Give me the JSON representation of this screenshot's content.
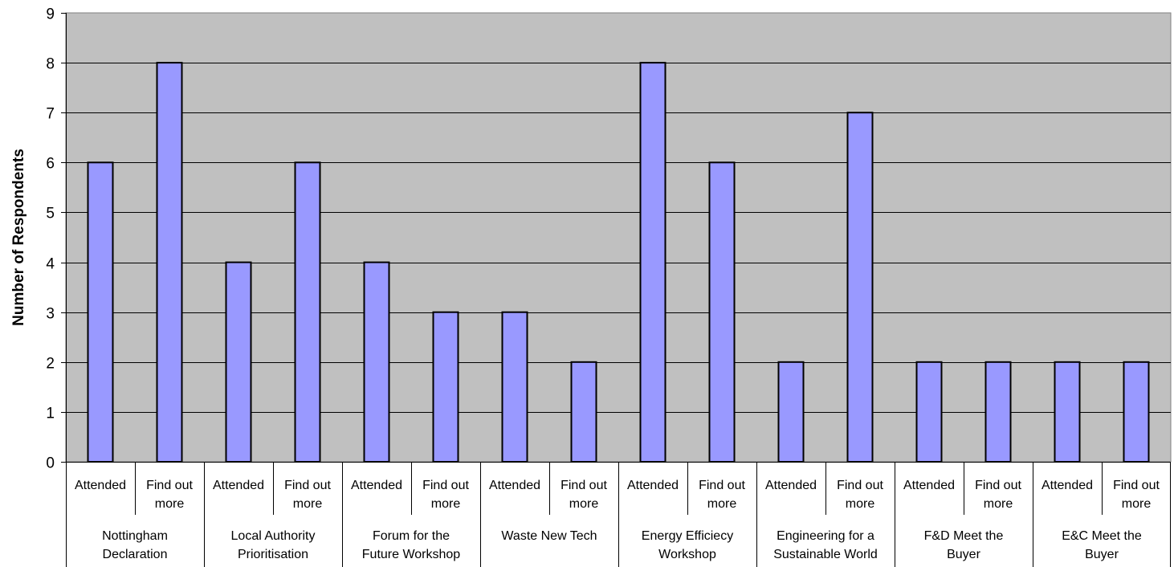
{
  "colors": {
    "plot_background": "#c0c0c0",
    "bar_fill": "#9999ff",
    "bar_stroke": "#000000",
    "gridline": "#000000"
  },
  "chart_data": {
    "type": "bar",
    "title": "",
    "xlabel": "",
    "ylabel": "Number of Respondents",
    "ylim": [
      0,
      9
    ],
    "yticks": [
      0,
      1,
      2,
      3,
      4,
      5,
      6,
      7,
      8,
      9
    ],
    "grid": true,
    "legend": "none",
    "groups": [
      {
        "label": [
          "Nottingham",
          "Declaration"
        ],
        "categories": [
          [
            "Attended"
          ],
          [
            "Find out",
            "more"
          ]
        ],
        "values": [
          6,
          8
        ]
      },
      {
        "label": [
          "Local Authority",
          "Prioritisation"
        ],
        "categories": [
          [
            "Attended"
          ],
          [
            "Find out",
            "more"
          ]
        ],
        "values": [
          4,
          6
        ]
      },
      {
        "label": [
          "Forum for the",
          "Future Workshop"
        ],
        "categories": [
          [
            "Attended"
          ],
          [
            "Find out",
            "more"
          ]
        ],
        "values": [
          4,
          3
        ]
      },
      {
        "label": [
          "Waste New Tech"
        ],
        "categories": [
          [
            "Attended"
          ],
          [
            "Find out",
            "more"
          ]
        ],
        "values": [
          3,
          2
        ]
      },
      {
        "label": [
          "Energy Efficiecy",
          "Workshop"
        ],
        "categories": [
          [
            "Attended"
          ],
          [
            "Find out",
            "more"
          ]
        ],
        "values": [
          8,
          6
        ]
      },
      {
        "label": [
          "Engineering for a",
          "Sustainable World"
        ],
        "categories": [
          [
            "Attended"
          ],
          [
            "Find out",
            "more"
          ]
        ],
        "values": [
          2,
          7
        ]
      },
      {
        "label": [
          "F&D Meet the",
          "Buyer"
        ],
        "categories": [
          [
            "Attended"
          ],
          [
            "Find out",
            "more"
          ]
        ],
        "values": [
          2,
          2
        ]
      },
      {
        "label": [
          "E&C Meet the",
          "Buyer"
        ],
        "categories": [
          [
            "Attended"
          ],
          [
            "Find out",
            "more"
          ]
        ],
        "values": [
          2,
          2
        ]
      }
    ]
  }
}
